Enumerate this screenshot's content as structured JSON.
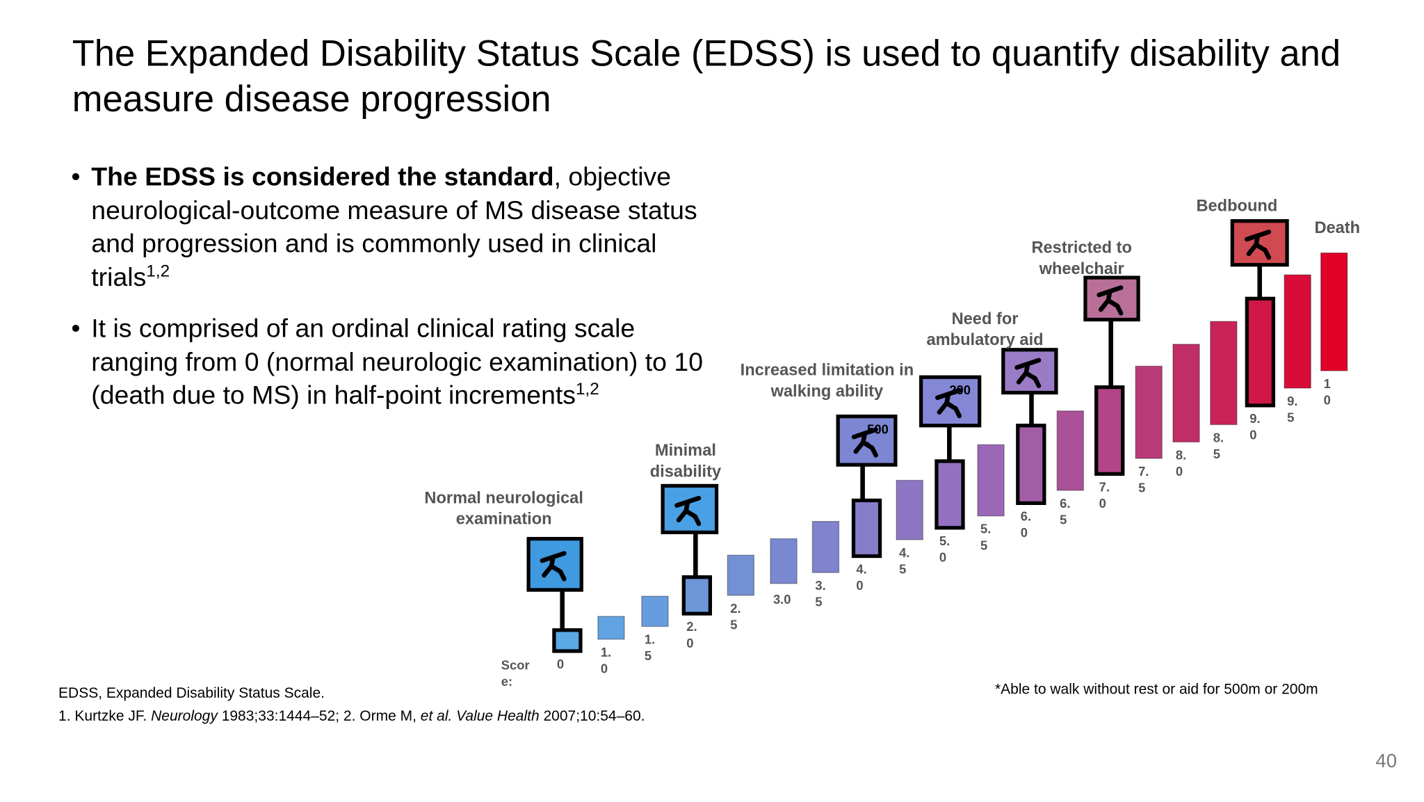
{
  "title": "The Expanded Disability Status Scale (EDSS) is used to quantify disability and measure disease progression",
  "bullets": [
    {
      "bold": "The EDSS is considered the standard",
      "text": ", objective neurological-outcome measure of MS disease status and progression and is commonly used in clinical trials",
      "sup": "1,2"
    },
    {
      "bold": "",
      "text": "It is comprised of an ordinal clinical rating scale ranging from 0 (normal neurologic examination) to 10 (death due to MS) in half-point increments",
      "sup": "1,2"
    }
  ],
  "scale": {
    "score_label": "Score:",
    "steps": [
      "0",
      "1.0",
      "1.5",
      "2.0",
      "2.5",
      "3.0",
      "3.5",
      "4.0",
      "4.5",
      "5.0",
      "5.5",
      "6.0",
      "6.5",
      "7.0",
      "7.5",
      "8.0",
      "8.5",
      "9.0",
      "9.5",
      "10"
    ],
    "milestones": [
      "Normal neurological examination",
      "Minimal disability",
      "Increased limitation in walking ability",
      "Need for ambulatory aid",
      "Restricted to wheelchair",
      "Bedbound",
      "Death"
    ],
    "walk_distances": [
      "500",
      "200"
    ],
    "asterisk": "*"
  },
  "walk_note": "*Able to walk without rest or aid for 500m or 200m",
  "abbreviation": "EDSS, Expanded Disability Status Scale.",
  "references": [
    {
      "text": "1. Kurtzke JF. "
    },
    {
      "text": "Neurology",
      "italic": true
    },
    {
      "text": " 1983;33:1444–52; 2. Orme M, "
    },
    {
      "text": "et al. Value Health",
      "italic": true
    },
    {
      "text": " 2007;10:54–60."
    }
  ],
  "page_number": "40"
}
